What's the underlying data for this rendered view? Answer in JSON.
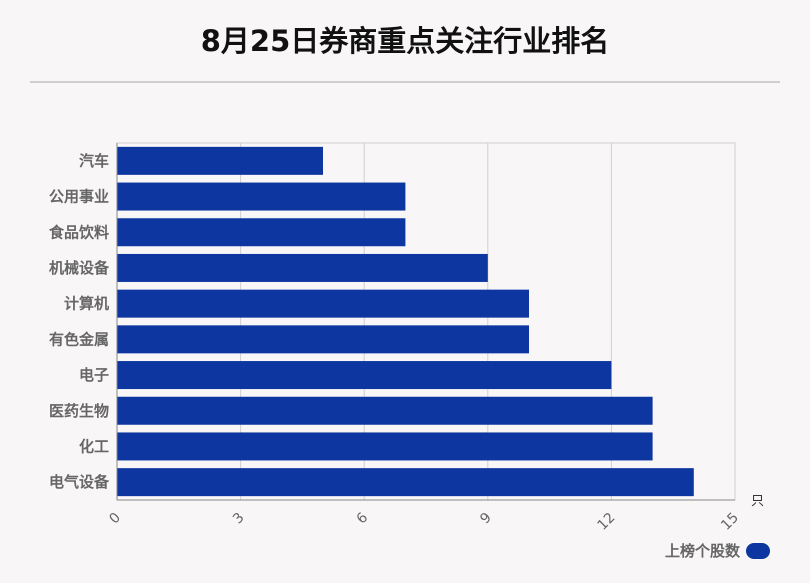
{
  "title": "8月25日券商重点关注行业排名",
  "unit": "只",
  "legend_label": "上榜个股数",
  "colors": {
    "bar": "#0d36a0",
    "grid": "#d0d0d0",
    "axis": "#888888",
    "label": "#666666"
  },
  "chart_data": {
    "type": "bar",
    "orientation": "horizontal",
    "categories": [
      "汽车",
      "公用事业",
      "食品饮料",
      "机械设备",
      "计算机",
      "有色金属",
      "电子",
      "医药生物",
      "化工",
      "电气设备"
    ],
    "series": [
      {
        "name": "上榜个股数",
        "values": [
          5,
          7,
          7,
          9,
          10,
          10,
          12,
          13,
          13,
          14
        ]
      }
    ],
    "xlim": [
      0,
      15
    ],
    "xticks": [
      0,
      3,
      6,
      9,
      12,
      15
    ],
    "xlabel": "只",
    "grid": true,
    "legend": "bottom-right"
  }
}
